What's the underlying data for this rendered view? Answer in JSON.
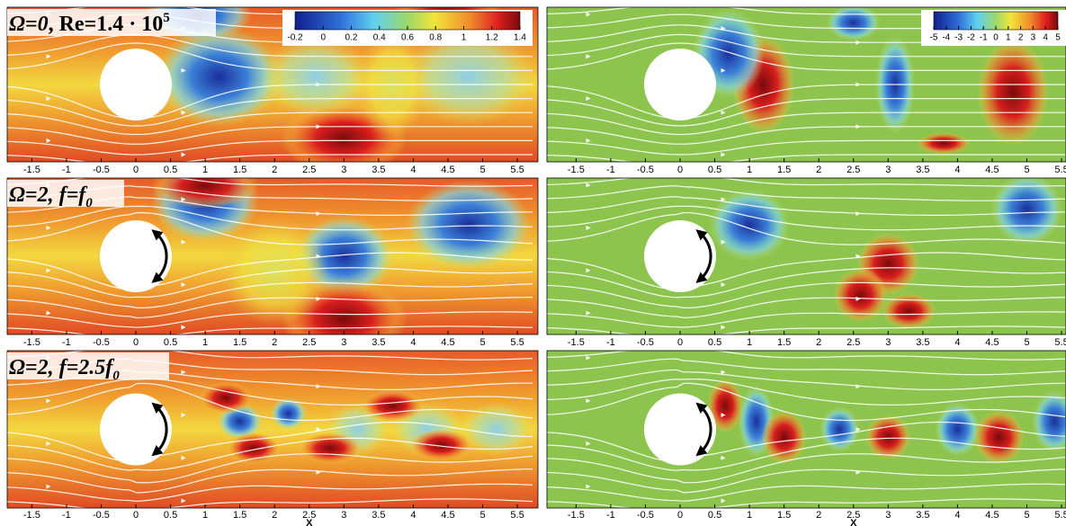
{
  "panels": [
    {
      "title": {
        "italic": "Ω=0",
        "text": ", Re=1.4 · 10",
        "sup": "5"
      }
    },
    {
      "title": {
        "italic": "Ω=2, f=f",
        "sub": "0"
      }
    },
    {
      "title": {
        "italic": "Ω=2, f=2.5f",
        "sub": "0"
      }
    }
  ],
  "x_ticks": [
    -1.5,
    -1,
    -0.5,
    0,
    0.5,
    1,
    1.5,
    2,
    2.5,
    3,
    3.5,
    4,
    4.5,
    5,
    5.5
  ],
  "x_label": "X",
  "colorbar_left": [
    -0.2,
    0,
    0.2,
    0.4,
    0.6,
    0.8,
    1,
    1.2,
    1.4
  ],
  "colorbar_right": [
    -5,
    -4,
    -3,
    -2,
    -1,
    0,
    1,
    2,
    3,
    4,
    5
  ]
}
